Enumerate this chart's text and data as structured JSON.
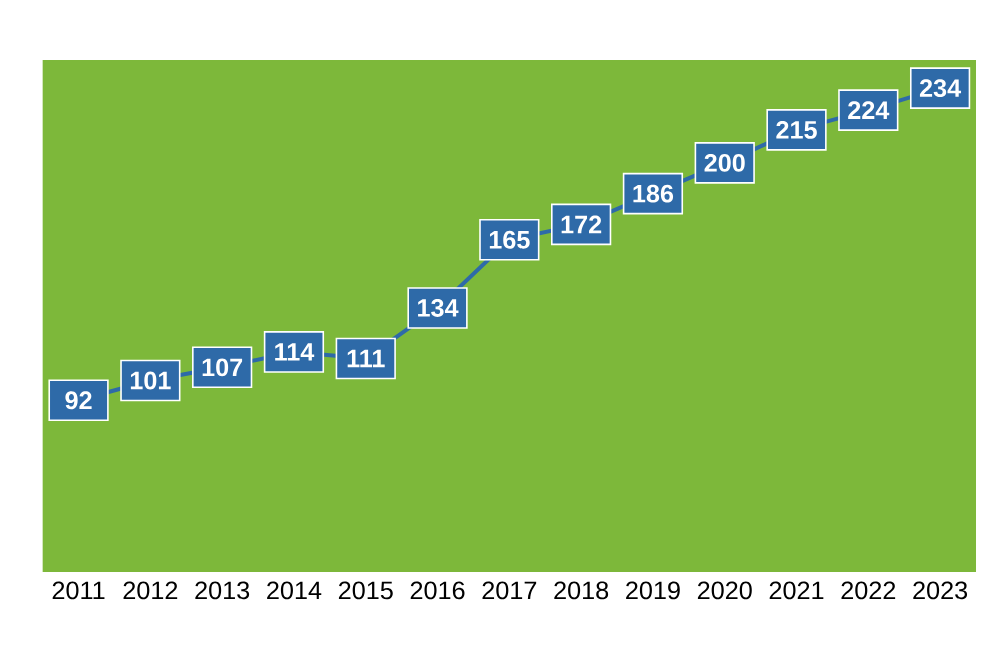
{
  "chart_data": {
    "type": "line",
    "categories": [
      "2011",
      "2012",
      "2013",
      "2014",
      "2015",
      "2016",
      "2017",
      "2018",
      "2019",
      "2020",
      "2021",
      "2022",
      "2023"
    ],
    "values": [
      92,
      101,
      107,
      114,
      111,
      134,
      165,
      172,
      186,
      200,
      215,
      224,
      234
    ],
    "color": "#2e6aa8",
    "marker": "square",
    "data_labels": true,
    "grid": false
  }
}
